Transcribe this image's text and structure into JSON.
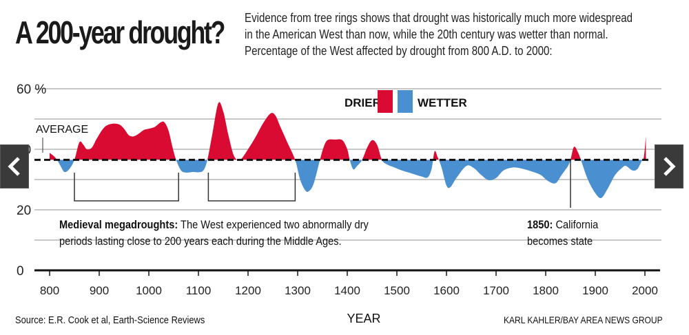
{
  "header": {
    "title": "A 200-year drought?",
    "subtitle_lines": [
      "Evidence from tree rings shows that drought was historically much more widespread",
      "in the American West than now, while the 20th century was wetter than normal.",
      "Percentage of the West affected by drought from 800 A.D. to 2000:"
    ]
  },
  "annotations": {
    "megadrought_bold": "Medieval megadroughts:",
    "megadrought_line1": " The West experienced two abnormally dry",
    "megadrought_line2": "periods lasting close to 200 years each during the Middle Ages.",
    "statehood_bold": "1850:",
    "statehood_line1": " California",
    "statehood_line2": "becomes state",
    "average_label": "AVERAGE"
  },
  "footer": {
    "source": "Source: E.R. Cook et al, Earth-Science Reviews",
    "credit": "KARL KAHLER/BAY AREA NEWS GROUP"
  },
  "nav": {
    "prev_icon": "chevron-left-icon",
    "next_icon": "chevron-right-icon"
  },
  "colors": {
    "drier": "#d90b33",
    "wetter": "#4a90d0",
    "grid": "#c8c8c8",
    "axis": "#111111"
  },
  "chart_data": {
    "type": "area",
    "title": "Percentage of the West affected by drought from 800 A.D. to 2000",
    "xlabel": "YEAR",
    "ylabel": "",
    "xlim": [
      785,
      2010
    ],
    "ylim": [
      0,
      60
    ],
    "y_ticks": [
      {
        "value": 60,
        "label": "60 %"
      },
      {
        "value": 40,
        "label": "40"
      },
      {
        "value": 20,
        "label": "20"
      },
      {
        "value": 0,
        "label": "0"
      }
    ],
    "y_gridlines": [
      10,
      20,
      30,
      40,
      50,
      60
    ],
    "x_ticks": [
      800,
      900,
      1000,
      1100,
      1200,
      1300,
      1400,
      1500,
      1600,
      1700,
      1800,
      1900,
      2000
    ],
    "x_tick_labels": [
      "800",
      "900",
      "1000",
      "1100",
      "1200",
      "1300",
      "1400",
      "1500",
      "1600",
      "1700",
      "1800",
      "1900",
      "2000"
    ],
    "average": 36.5,
    "legend": {
      "placement": "top-center",
      "entries": [
        {
          "name": "DRIER",
          "color": "#d90b33"
        },
        {
          "name": "WETTER",
          "color": "#4a90d0"
        }
      ]
    },
    "brackets": [
      {
        "start": 850,
        "end": 1060
      },
      {
        "start": 1120,
        "end": 1295
      }
    ],
    "marker_year": 1850,
    "x": [
      800,
      808,
      815,
      822,
      830,
      840,
      850,
      860,
      868,
      875,
      885,
      895,
      910,
      925,
      940,
      950,
      960,
      970,
      980,
      990,
      1000,
      1012,
      1025,
      1032,
      1040,
      1048,
      1055,
      1065,
      1075,
      1090,
      1100,
      1110,
      1118,
      1128,
      1140,
      1150,
      1160,
      1170,
      1178,
      1185,
      1200,
      1215,
      1230,
      1245,
      1255,
      1265,
      1280,
      1295,
      1305,
      1315,
      1322,
      1332,
      1345,
      1352,
      1360,
      1375,
      1390,
      1400,
      1405,
      1412,
      1420,
      1430,
      1440,
      1450,
      1460,
      1470,
      1480,
      1495,
      1510,
      1530,
      1550,
      1562,
      1570,
      1576,
      1582,
      1590,
      1600,
      1608,
      1620,
      1640,
      1655,
      1670,
      1685,
      1700,
      1715,
      1735,
      1755,
      1775,
      1790,
      1805,
      1820,
      1832,
      1845,
      1850,
      1857,
      1865,
      1872,
      1885,
      1900,
      1912,
      1925,
      1940,
      1955,
      1962,
      1975,
      1985,
      1993,
      1998,
      2002
    ],
    "values": [
      38.8,
      37.8,
      36.5,
      34.5,
      32.5,
      33.5,
      36.5,
      42.3,
      41.5,
      40.0,
      40.5,
      43.5,
      47.2,
      48.4,
      48.2,
      46.8,
      44.6,
      44.3,
      45.2,
      46.4,
      46.8,
      47.4,
      49.0,
      48.8,
      46.0,
      40.5,
      36.5,
      33.0,
      32.3,
      32.5,
      32.4,
      33.0,
      36.5,
      45.0,
      55.2,
      52.5,
      45.0,
      38.5,
      36.5,
      36.5,
      40.0,
      44.0,
      48.5,
      51.8,
      51.2,
      47.5,
      42.0,
      36.5,
      30.0,
      26.5,
      26.1,
      28.5,
      36.5,
      40.5,
      43.0,
      43.2,
      43.0,
      40.0,
      36.5,
      33.4,
      34.5,
      36.5,
      40.5,
      43.0,
      41.5,
      36.5,
      35.0,
      34.0,
      33.0,
      32.0,
      31.0,
      30.7,
      33.5,
      39.3,
      37.5,
      34.0,
      28.0,
      27.5,
      30.5,
      34.5,
      33.8,
      31.5,
      29.8,
      30.5,
      33.0,
      34.0,
      33.5,
      32.5,
      31.5,
      29.5,
      28.8,
      31.5,
      34.5,
      36.5,
      40.8,
      39.0,
      36.0,
      30.0,
      25.5,
      23.9,
      27.0,
      31.5,
      34.0,
      34.5,
      33.0,
      33.5,
      36.0,
      37.5,
      44.3
    ]
  }
}
